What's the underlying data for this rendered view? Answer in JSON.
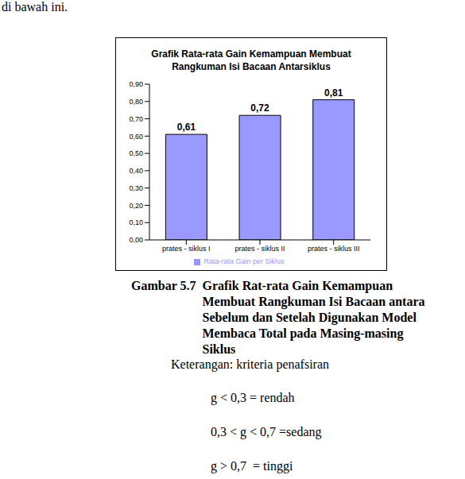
{
  "chart_data": {
    "type": "bar",
    "title": "Grafik Rata-rata Gain Kemampuan Membuat Rangkuman Isi Bacaan Antarsiklus",
    "categories": [
      "prates - siklus I",
      "prates - siklus II",
      "prates - siklus III"
    ],
    "series": [
      {
        "name": "Rata-rata Gain per Siklus",
        "color": "#9999ff",
        "values": [
          0.61,
          0.72,
          0.81
        ],
        "value_labels": [
          "0,61",
          "0,72",
          "0,81"
        ]
      }
    ],
    "ylim": [
      0,
      0.9
    ],
    "yticks": [
      {
        "value": 0,
        "label": "0,00"
      },
      {
        "value": 0.1,
        "label": "0,10"
      },
      {
        "value": 0.2,
        "label": "0,20"
      },
      {
        "value": 0.3,
        "label": "0,30"
      },
      {
        "value": 0.4,
        "label": "0,40"
      },
      {
        "value": 0.5,
        "label": "0,50"
      },
      {
        "value": 0.6,
        "label": "0,60"
      },
      {
        "value": 0.7,
        "label": "0,70"
      },
      {
        "value": 0.8,
        "label": "0,80"
      },
      {
        "value": 0.9,
        "label": "0,90"
      }
    ],
    "grid": false,
    "data_labels": true,
    "legend": "bottom"
  },
  "page": {
    "intro": "di bawah ini.",
    "caption": {
      "label": "Gambar 5.7",
      "text": "Grafik Rat-rata Gain Kemampuan Membuat Rangkuman Isi Bacaan antara Sebelum dan Setelah Digunakan  Model  Membaca Total pada Masing-masing Siklus"
    },
    "note_title": "Keterangan: kriteria penafsiran",
    "criteria": [
      "g < 0,3 = rendah",
      "0,3 < g < 0,7 =sedang",
      "g > 0,7  = tinggi"
    ]
  }
}
